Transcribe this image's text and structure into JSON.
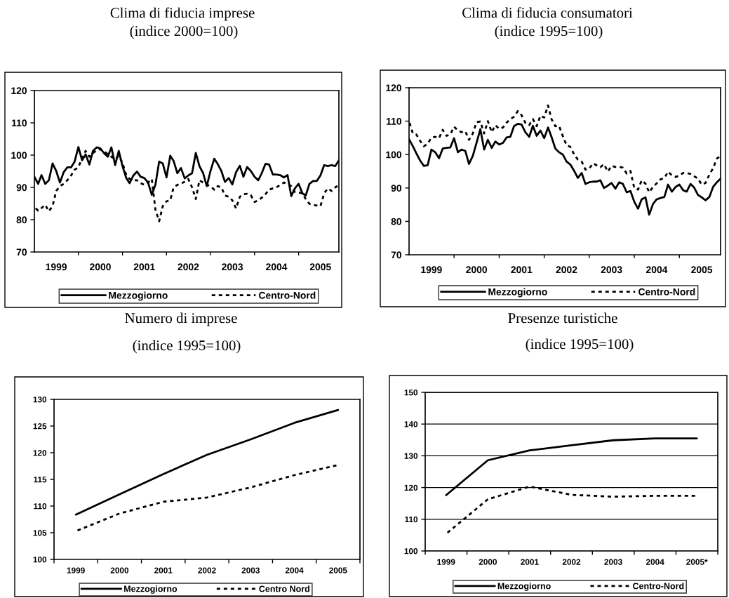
{
  "chart_data": [
    {
      "type": "line",
      "title": "Clima di fiducia imprese",
      "subtitle": "(indice 2000=100)",
      "x": [
        "1999-01",
        "1999-02",
        "1999-03",
        "1999-04",
        "1999-05",
        "1999-06",
        "1999-07",
        "1999-08",
        "1999-09",
        "1999-10",
        "1999-11",
        "1999-12",
        "2000-01",
        "2000-02",
        "2000-03",
        "2000-04",
        "2000-05",
        "2000-06",
        "2000-07",
        "2000-08",
        "2000-09",
        "2000-10",
        "2000-11",
        "2000-12",
        "2001-01",
        "2001-02",
        "2001-03",
        "2001-04",
        "2001-05",
        "2001-06",
        "2001-07",
        "2001-08",
        "2001-09",
        "2001-10",
        "2001-11",
        "2001-12",
        "2002-01",
        "2002-02",
        "2002-03",
        "2002-04",
        "2002-05",
        "2002-06",
        "2002-07",
        "2002-08",
        "2002-09",
        "2002-10",
        "2002-11",
        "2002-12",
        "2003-01",
        "2003-02",
        "2003-03",
        "2003-04",
        "2003-05",
        "2003-06",
        "2003-07",
        "2003-08",
        "2003-09",
        "2003-10",
        "2003-11",
        "2003-12",
        "2004-01",
        "2004-02",
        "2004-03",
        "2004-04",
        "2004-05",
        "2004-06",
        "2004-07",
        "2004-08",
        "2004-09",
        "2004-10",
        "2004-11",
        "2004-12",
        "2005-01",
        "2005-02",
        "2005-03",
        "2005-04",
        "2005-05",
        "2005-06",
        "2005-07",
        "2005-08",
        "2005-09",
        "2005-10",
        "2005-11",
        "2005-12"
      ],
      "xlim": [
        "1999-01",
        "2005-12"
      ],
      "xticks": [
        {
          "value": "1999-07",
          "label": "1999"
        },
        {
          "value": "2000-07",
          "label": "2000"
        },
        {
          "value": "2001-07",
          "label": "2001"
        },
        {
          "value": "2002-07",
          "label": "2002"
        },
        {
          "value": "2003-07",
          "label": "2003"
        },
        {
          "value": "2004-07",
          "label": "2004"
        },
        {
          "value": "2005-07",
          "label": "2005"
        },
        {
          "value": "2000-01",
          "label": null
        },
        {
          "value": "2001-01",
          "label": null
        },
        {
          "value": "2002-01",
          "label": null
        },
        {
          "value": "2003-01",
          "label": null
        },
        {
          "value": "2004-01",
          "label": null
        },
        {
          "value": "2005-01",
          "label": null
        }
      ],
      "ylim": [
        70,
        120
      ],
      "yticks": [
        70,
        80,
        90,
        100,
        110,
        120
      ],
      "grid": false,
      "legend": "bottom",
      "series": [
        {
          "name": "Mezzogiorno",
          "color": "#000000",
          "line_style": "solid",
          "values": [
            93.3,
            91.1,
            93.8,
            91.1,
            92.2,
            97.4,
            95.1,
            91.5,
            94.7,
            96.2,
            96.2,
            98.0,
            102.5,
            98.4,
            100.2,
            97.1,
            101.3,
            102.4,
            102.1,
            100.6,
            99.5,
            102.4,
            96.9,
            101.3,
            96.6,
            92.9,
            91.3,
            93.7,
            94.9,
            93.3,
            92.9,
            91.5,
            87.7,
            90.8,
            98.0,
            97.4,
            93.1,
            99.8,
            98.2,
            94.4,
            96.0,
            92.8,
            93.7,
            94.4,
            100.7,
            96.6,
            94.4,
            90.4,
            95.1,
            98.9,
            97.3,
            95.1,
            91.7,
            92.9,
            90.9,
            94.7,
            96.7,
            93.3,
            96.3,
            95.1,
            93.3,
            92.2,
            94.4,
            97.3,
            97.1,
            94.0,
            94.0,
            93.8,
            93.1,
            93.8,
            87.3,
            89.7,
            91.1,
            88.2,
            87.5,
            91.1,
            92.0,
            92.0,
            93.7,
            96.9,
            96.6,
            96.9,
            96.6,
            98.4
          ]
        },
        {
          "name": "Centro-Nord",
          "color": "#000000",
          "line_style": "dashed",
          "values": [
            83.9,
            82.8,
            83.6,
            84.6,
            82.6,
            84.2,
            88.9,
            90.4,
            91.1,
            92.2,
            93.7,
            95.5,
            96.2,
            99.1,
            101.3,
            99.5,
            100.6,
            101.5,
            101.8,
            101.3,
            100.2,
            99.5,
            98.7,
            99.8,
            97.6,
            93.8,
            92.6,
            92.2,
            92.2,
            91.3,
            90.8,
            91.5,
            92.6,
            83.1,
            79.5,
            84.2,
            85.7,
            86.0,
            90.0,
            90.8,
            91.1,
            91.8,
            92.6,
            90.0,
            86.4,
            92.2,
            91.5,
            90.8,
            90.4,
            89.3,
            90.4,
            90.0,
            87.5,
            87.1,
            86.0,
            83.5,
            87.1,
            87.9,
            88.0,
            87.6,
            85.5,
            86.0,
            86.8,
            87.9,
            89.3,
            89.7,
            90.0,
            90.8,
            91.5,
            91.1,
            90.4,
            88.6,
            88.4,
            88.2,
            86.4,
            84.9,
            84.6,
            84.4,
            84.2,
            88.2,
            89.7,
            88.9,
            90.0,
            90.8
          ]
        }
      ]
    },
    {
      "type": "line",
      "title": "Clima di fiducia consumatori",
      "subtitle": "(indice 1995=100)",
      "x": [
        "1999-01",
        "1999-02",
        "1999-03",
        "1999-04",
        "1999-05",
        "1999-06",
        "1999-07",
        "1999-08",
        "1999-09",
        "1999-10",
        "1999-11",
        "1999-12",
        "2000-01",
        "2000-02",
        "2000-03",
        "2000-04",
        "2000-05",
        "2000-06",
        "2000-07",
        "2000-08",
        "2000-09",
        "2000-10",
        "2000-11",
        "2000-12",
        "2001-01",
        "2001-02",
        "2001-03",
        "2001-04",
        "2001-05",
        "2001-06",
        "2001-07",
        "2001-08",
        "2001-09",
        "2001-10",
        "2001-11",
        "2001-12",
        "2002-01",
        "2002-02",
        "2002-03",
        "2002-04",
        "2002-05",
        "2002-06",
        "2002-07",
        "2002-08",
        "2002-09",
        "2002-10",
        "2002-11",
        "2002-12",
        "2003-01",
        "2003-02",
        "2003-03",
        "2003-04",
        "2003-05",
        "2003-06",
        "2003-07",
        "2003-08",
        "2003-09",
        "2003-10",
        "2003-11",
        "2003-12",
        "2004-01",
        "2004-02",
        "2004-03",
        "2004-04",
        "2004-05",
        "2004-06",
        "2004-07",
        "2004-08",
        "2004-09",
        "2004-10",
        "2004-11",
        "2004-12",
        "2005-01",
        "2005-02",
        "2005-03",
        "2005-04",
        "2005-05",
        "2005-06",
        "2005-07",
        "2005-08",
        "2005-09",
        "2005-10",
        "2005-11",
        "2005-12"
      ],
      "xlim": [
        "1999-01",
        "2005-12"
      ],
      "xticks": [
        {
          "value": "1999-07",
          "label": "1999"
        },
        {
          "value": "2000-07",
          "label": "2000"
        },
        {
          "value": "2001-07",
          "label": "2001"
        },
        {
          "value": "2002-07",
          "label": "2002"
        },
        {
          "value": "2003-07",
          "label": "2003"
        },
        {
          "value": "2004-07",
          "label": "2004"
        },
        {
          "value": "2005-07",
          "label": "2005"
        },
        {
          "value": "2000-01",
          "label": null
        },
        {
          "value": "2001-01",
          "label": null
        },
        {
          "value": "2002-01",
          "label": null
        },
        {
          "value": "2003-01",
          "label": null
        },
        {
          "value": "2004-01",
          "label": null
        },
        {
          "value": "2005-01",
          "label": null
        }
      ],
      "ylim": [
        70,
        120
      ],
      "yticks": [
        70,
        80,
        90,
        100,
        110,
        120
      ],
      "grid": false,
      "legend": "bottom",
      "series": [
        {
          "name": "Mezzogiorno",
          "color": "#000000",
          "line_style": "solid",
          "values": [
            104.6,
            102.5,
            100.4,
            98.2,
            96.6,
            96.8,
            101.5,
            100.7,
            98.9,
            101.8,
            102.0,
            102.1,
            104.9,
            100.7,
            101.5,
            101.1,
            97.2,
            99.6,
            103.5,
            107.6,
            101.5,
            104.4,
            102.0,
            103.9,
            103.0,
            103.5,
            105.1,
            105.3,
            108.5,
            109.2,
            109.0,
            106.7,
            105.3,
            108.6,
            105.6,
            107.2,
            104.9,
            108.1,
            105.3,
            101.8,
            100.7,
            100.0,
            97.9,
            97.0,
            95.1,
            93.0,
            94.5,
            91.2,
            91.7,
            91.9,
            91.9,
            92.3,
            90.0,
            90.7,
            91.5,
            89.8,
            91.7,
            91.2,
            88.7,
            89.1,
            85.9,
            83.8,
            86.6,
            87.2,
            82.0,
            85.2,
            86.6,
            87.0,
            87.3,
            91.0,
            88.9,
            90.3,
            91.0,
            89.3,
            88.9,
            91.2,
            90.1,
            87.9,
            87.2,
            86.3,
            87.3,
            90.3,
            91.7,
            92.8
          ]
        },
        {
          "name": "Centro-Nord",
          "color": "#000000",
          "line_style": "dashed",
          "values": [
            110.0,
            106.3,
            106.0,
            104.1,
            102.5,
            103.2,
            105.1,
            105.3,
            104.9,
            107.4,
            105.6,
            106.0,
            108.3,
            107.2,
            106.7,
            107.0,
            104.4,
            106.3,
            109.7,
            109.9,
            106.3,
            110.0,
            106.7,
            108.8,
            107.7,
            108.1,
            109.5,
            110.6,
            111.3,
            113.0,
            111.8,
            109.5,
            108.8,
            110.6,
            108.5,
            111.6,
            111.1,
            114.7,
            110.6,
            108.5,
            108.6,
            105.5,
            102.8,
            102.3,
            100.0,
            98.5,
            97.9,
            95.5,
            95.8,
            97.4,
            96.8,
            96.2,
            97.1,
            94.9,
            96.6,
            96.3,
            96.3,
            96.1,
            94.3,
            95.1,
            90.0,
            89.5,
            92.3,
            91.3,
            88.7,
            90.3,
            91.4,
            92.6,
            92.9,
            94.9,
            93.8,
            93.3,
            93.7,
            94.5,
            94.5,
            94.2,
            93.5,
            92.8,
            91.0,
            91.5,
            94.0,
            95.9,
            98.8,
            99.6
          ]
        }
      ]
    },
    {
      "type": "line",
      "title": "Numero di imprese",
      "subtitle": "(indice 1995=100)",
      "categories": [
        "1999",
        "2000",
        "2001",
        "2002",
        "2003",
        "2004",
        "2005"
      ],
      "ylim": [
        100,
        130
      ],
      "yticks": [
        100,
        105,
        110,
        115,
        120,
        125,
        130
      ],
      "grid": false,
      "legend": "bottom",
      "series": [
        {
          "name": "Mezzogiorno",
          "color": "#000000",
          "line_style": "solid",
          "values": [
            108.4,
            112.2,
            116.0,
            119.6,
            122.5,
            125.6,
            128.0
          ]
        },
        {
          "name": "Centro Nord",
          "color": "#000000",
          "line_style": "dashed",
          "values": [
            105.3,
            108.6,
            110.8,
            111.6,
            113.5,
            115.8,
            117.7
          ]
        }
      ]
    },
    {
      "type": "line",
      "title": "Presenze turistiche",
      "subtitle": "(indice 1995=100)",
      "categories": [
        "1999",
        "2000",
        "2001",
        "2002",
        "2003",
        "2004",
        "2005*"
      ],
      "ylim": [
        100,
        150
      ],
      "yticks": [
        100,
        110,
        120,
        130,
        140,
        150
      ],
      "grid": "y",
      "legend": "bottom",
      "series": [
        {
          "name": "Mezzogiorno",
          "color": "#000000",
          "line_style": "solid",
          "values": [
            117.6,
            128.6,
            131.7,
            133.3,
            134.9,
            135.5,
            135.5
          ]
        },
        {
          "name": "Centro-Nord",
          "color": "#000000",
          "line_style": "dashed",
          "values": [
            105.4,
            116.3,
            120.3,
            117.7,
            117.1,
            117.4,
            117.4
          ]
        }
      ]
    }
  ]
}
